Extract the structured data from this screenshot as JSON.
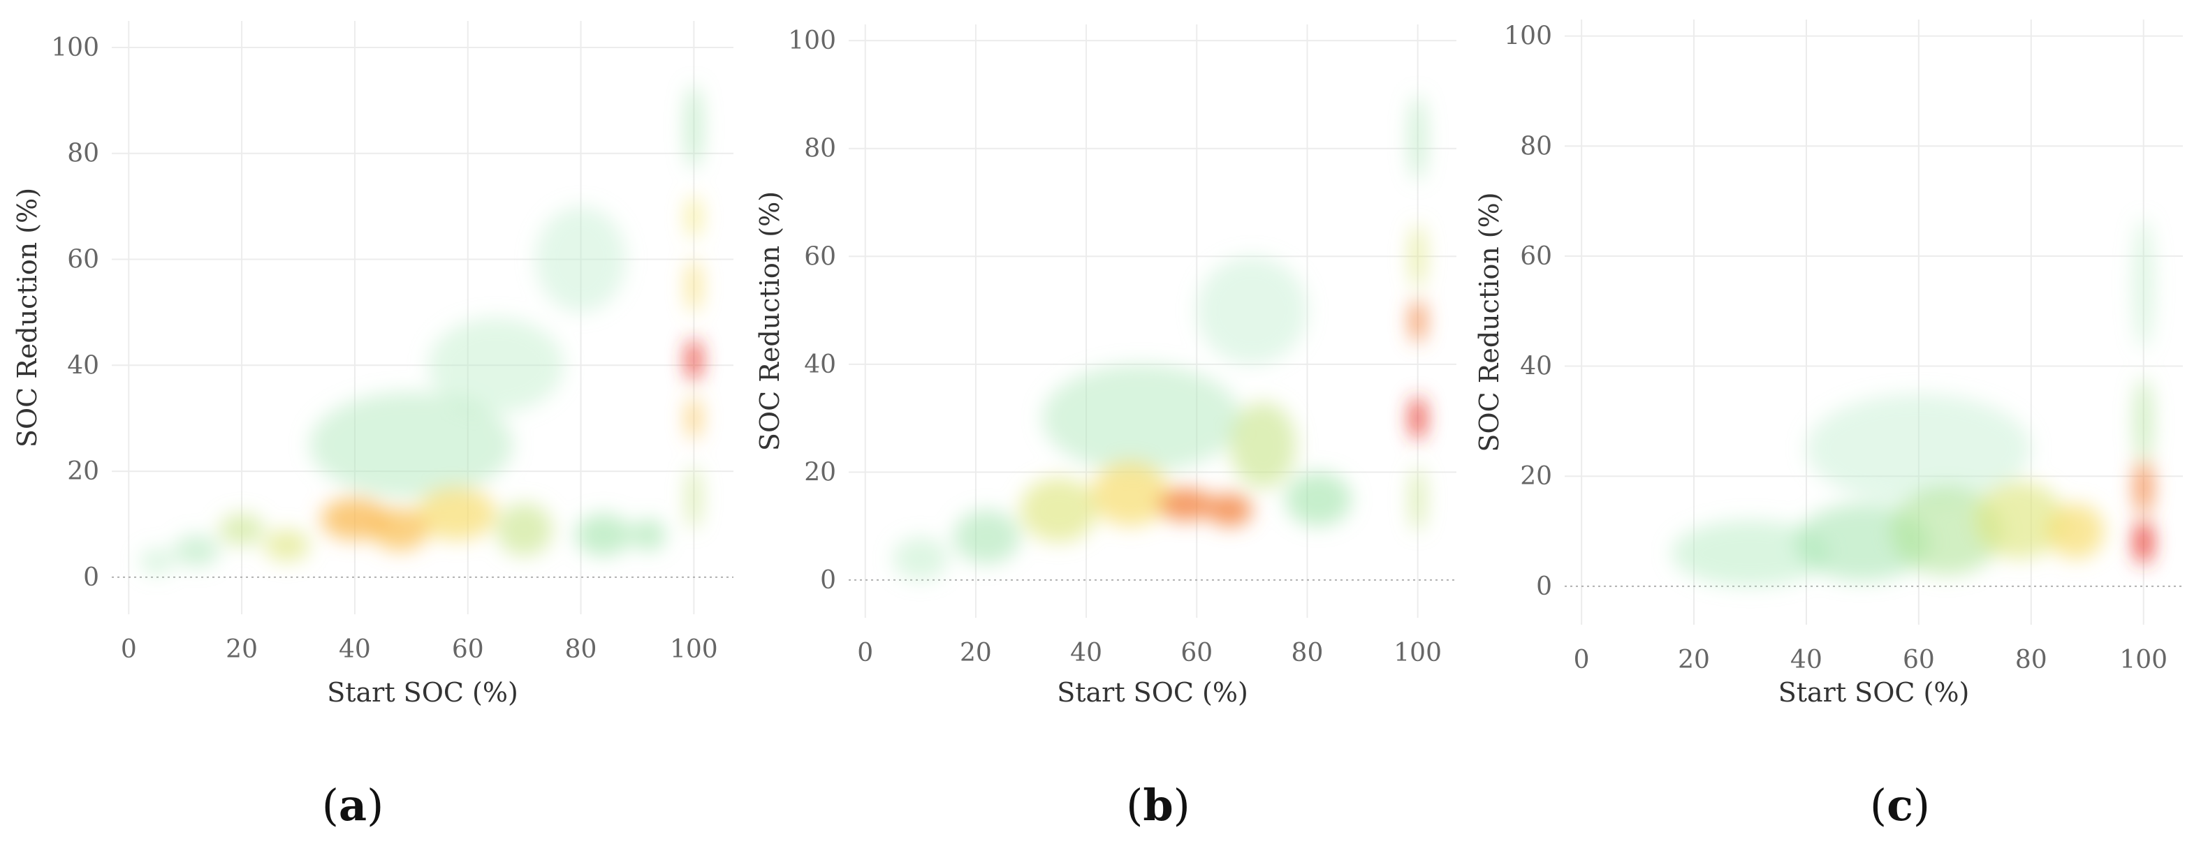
{
  "colors": {
    "background": "#ffffff",
    "grid": "#ececec",
    "tick_text": "#666666",
    "low_density": "#bfeed0",
    "mid_density": "#f7e36a",
    "high_density": "#e8342a"
  },
  "chart_data": [
    {
      "type": "heatmap",
      "label_open": "(",
      "label_letter": "a",
      "label_close": ")",
      "xlabel": "Start SOC (%)",
      "ylabel": "SOC Reduction (%)",
      "xlim": [
        -3,
        107
      ],
      "ylim": [
        -7,
        105
      ],
      "x_ticks": [
        0,
        20,
        40,
        60,
        80,
        100
      ],
      "y_ticks": [
        0,
        20,
        40,
        60,
        80,
        100
      ],
      "grid": true,
      "density_blobs": [
        {
          "x": 5,
          "y": 3,
          "sx": 3,
          "sy": 2.5,
          "level": 0.15
        },
        {
          "x": 12,
          "y": 5,
          "sx": 4,
          "sy": 3,
          "level": 0.25
        },
        {
          "x": 20,
          "y": 9,
          "sx": 4,
          "sy": 3,
          "level": 0.45
        },
        {
          "x": 28,
          "y": 6,
          "sx": 4,
          "sy": 3,
          "level": 0.5
        },
        {
          "x": 40,
          "y": 11,
          "sx": 6,
          "sy": 4,
          "level": 0.75
        },
        {
          "x": 48,
          "y": 9,
          "sx": 5,
          "sy": 4,
          "level": 0.72
        },
        {
          "x": 58,
          "y": 12,
          "sx": 7,
          "sy": 5,
          "level": 0.6
        },
        {
          "x": 70,
          "y": 9,
          "sx": 5,
          "sy": 5,
          "level": 0.45
        },
        {
          "x": 84,
          "y": 8,
          "sx": 5,
          "sy": 4,
          "level": 0.35
        },
        {
          "x": 92,
          "y": 8,
          "sx": 3,
          "sy": 3,
          "level": 0.35
        },
        {
          "x": 50,
          "y": 25,
          "sx": 18,
          "sy": 10,
          "level": 0.2
        },
        {
          "x": 65,
          "y": 40,
          "sx": 12,
          "sy": 9,
          "level": 0.12
        },
        {
          "x": 80,
          "y": 60,
          "sx": 8,
          "sy": 10,
          "level": 0.1
        },
        {
          "x": 100,
          "y": 41,
          "sx": 1.3,
          "sy": 4,
          "level": 1.0
        },
        {
          "x": 100,
          "y": 30,
          "sx": 1.3,
          "sy": 4,
          "level": 0.7
        },
        {
          "x": 100,
          "y": 55,
          "sx": 1.3,
          "sy": 5,
          "level": 0.6
        },
        {
          "x": 100,
          "y": 68,
          "sx": 1.3,
          "sy": 4,
          "level": 0.55
        },
        {
          "x": 100,
          "y": 85,
          "sx": 1.5,
          "sy": 8,
          "level": 0.3
        },
        {
          "x": 100,
          "y": 15,
          "sx": 1.3,
          "sy": 6,
          "level": 0.45
        }
      ]
    },
    {
      "type": "heatmap",
      "label_open": "(",
      "label_letter": "b",
      "label_close": ")",
      "xlabel": "Start SOC (%)",
      "ylabel": "SOC Reduction (%)",
      "xlim": [
        -3,
        107
      ],
      "ylim": [
        -7,
        103
      ],
      "x_ticks": [
        0,
        20,
        40,
        60,
        80,
        100
      ],
      "y_ticks": [
        0,
        20,
        40,
        60,
        80,
        100
      ],
      "grid": true,
      "density_blobs": [
        {
          "x": 10,
          "y": 4,
          "sx": 5,
          "sy": 4,
          "level": 0.15
        },
        {
          "x": 22,
          "y": 8,
          "sx": 6,
          "sy": 5,
          "level": 0.3
        },
        {
          "x": 35,
          "y": 13,
          "sx": 7,
          "sy": 6,
          "level": 0.5
        },
        {
          "x": 48,
          "y": 16,
          "sx": 7,
          "sy": 6,
          "level": 0.6
        },
        {
          "x": 58,
          "y": 14,
          "sx": 5,
          "sy": 3,
          "level": 0.85
        },
        {
          "x": 66,
          "y": 13,
          "sx": 4,
          "sy": 3,
          "level": 0.85
        },
        {
          "x": 72,
          "y": 25,
          "sx": 6,
          "sy": 8,
          "level": 0.45
        },
        {
          "x": 82,
          "y": 15,
          "sx": 6,
          "sy": 5,
          "level": 0.35
        },
        {
          "x": 50,
          "y": 30,
          "sx": 18,
          "sy": 10,
          "level": 0.2
        },
        {
          "x": 70,
          "y": 50,
          "sx": 10,
          "sy": 10,
          "level": 0.1
        },
        {
          "x": 100,
          "y": 30,
          "sx": 1.4,
          "sy": 4,
          "level": 1.0
        },
        {
          "x": 100,
          "y": 48,
          "sx": 1.4,
          "sy": 4,
          "level": 0.85
        },
        {
          "x": 100,
          "y": 60,
          "sx": 1.4,
          "sy": 6,
          "level": 0.5
        },
        {
          "x": 100,
          "y": 82,
          "sx": 1.6,
          "sy": 8,
          "level": 0.25
        },
        {
          "x": 100,
          "y": 15,
          "sx": 1.4,
          "sy": 6,
          "level": 0.45
        }
      ]
    },
    {
      "type": "heatmap",
      "label_open": "(",
      "label_letter": "c",
      "label_close": ")",
      "xlabel": "Start SOC (%)",
      "ylabel": "SOC Reduction (%)",
      "xlim": [
        -3,
        107
      ],
      "ylim": [
        -7,
        103
      ],
      "x_ticks": [
        0,
        20,
        40,
        60,
        80,
        100
      ],
      "y_ticks": [
        0,
        20,
        40,
        60,
        80,
        100
      ],
      "grid": true,
      "density_blobs": [
        {
          "x": 30,
          "y": 6,
          "sx": 14,
          "sy": 6,
          "level": 0.18
        },
        {
          "x": 50,
          "y": 8,
          "sx": 12,
          "sy": 7,
          "level": 0.3
        },
        {
          "x": 65,
          "y": 10,
          "sx": 10,
          "sy": 8,
          "level": 0.4
        },
        {
          "x": 78,
          "y": 12,
          "sx": 8,
          "sy": 7,
          "level": 0.5
        },
        {
          "x": 88,
          "y": 10,
          "sx": 5,
          "sy": 5,
          "level": 0.6
        },
        {
          "x": 60,
          "y": 25,
          "sx": 20,
          "sy": 10,
          "level": 0.1
        },
        {
          "x": 100,
          "y": 8,
          "sx": 1.6,
          "sy": 4,
          "level": 1.0
        },
        {
          "x": 100,
          "y": 18,
          "sx": 1.6,
          "sy": 5,
          "level": 0.85
        },
        {
          "x": 100,
          "y": 30,
          "sx": 1.6,
          "sy": 8,
          "level": 0.4
        },
        {
          "x": 100,
          "y": 55,
          "sx": 1.8,
          "sy": 12,
          "level": 0.15
        }
      ]
    }
  ]
}
